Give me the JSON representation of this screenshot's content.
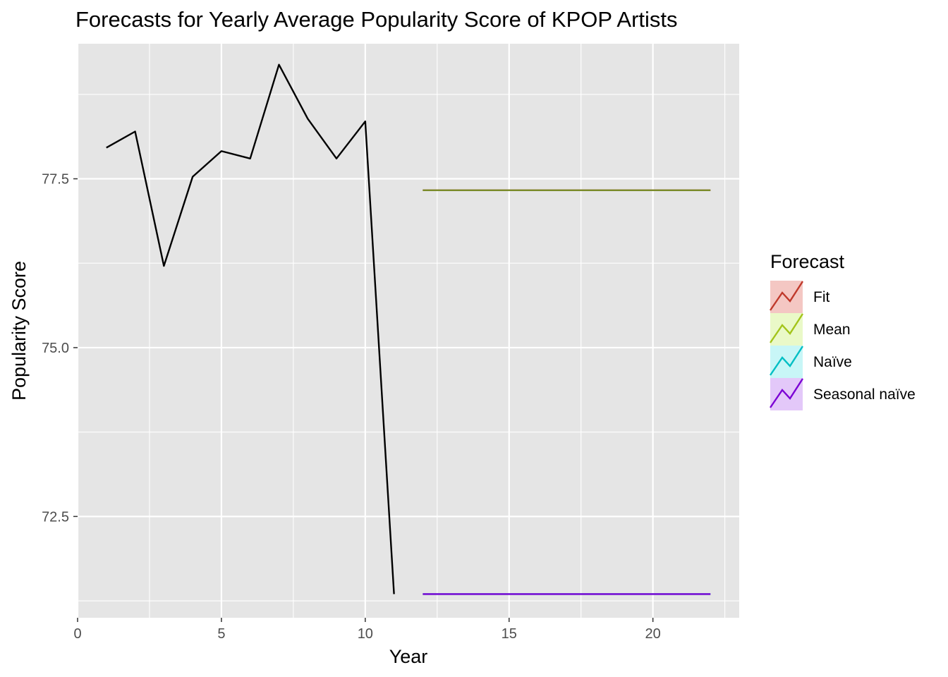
{
  "chart_data": {
    "type": "line",
    "title": "Forecasts for Yearly Average Popularity Score of KPOP Artists",
    "xlabel": "Year",
    "ylabel": "Popularity Score",
    "xlim": [
      0,
      23
    ],
    "ylim": [
      71.0,
      79.5
    ],
    "x_ticks": [
      0,
      5,
      10,
      15,
      20
    ],
    "x_tick_labels": [
      "0",
      "5",
      "10",
      "15",
      "20"
    ],
    "y_ticks": [
      72.5,
      75.0,
      77.5
    ],
    "y_tick_labels": [
      "72.5",
      "75.0",
      "77.5"
    ],
    "x_minor_gridlines": [
      2.5,
      7.5,
      12.5,
      17.5,
      22.5
    ],
    "y_minor_gridlines": [
      71.25,
      73.75,
      76.25,
      78.75
    ],
    "grid": true,
    "panel_background": "#e5e5e5",
    "grid_color": "#ffffff",
    "series": [
      {
        "key": "history",
        "color": "#000000",
        "x": [
          1,
          2,
          3,
          4,
          5,
          6,
          7,
          8,
          9,
          10,
          11
        ],
        "y": [
          77.96,
          78.2,
          76.21,
          77.53,
          77.91,
          77.8,
          79.19,
          78.39,
          77.8,
          78.35,
          71.35
        ]
      },
      {
        "key": "fit-forecast",
        "color": "#c0392b",
        "x": [
          12,
          22
        ],
        "y": [
          77.33,
          77.33
        ]
      },
      {
        "key": "mean-forecast",
        "color": "#7a8b2a",
        "x": [
          12,
          22
        ],
        "y": [
          77.33,
          77.33
        ]
      },
      {
        "key": "naive-forecast",
        "color": "#00bfc4",
        "x": [
          12,
          22
        ],
        "y": [
          71.35,
          71.35
        ]
      },
      {
        "key": "seasonal-naive-forecast",
        "color": "#7b00d4",
        "x": [
          12,
          22
        ],
        "y": [
          71.35,
          71.35
        ]
      }
    ],
    "legend": {
      "title": "Forecast",
      "placement": "right",
      "entries": [
        {
          "label": "Fit",
          "color": "#c0392b",
          "fill": "#f4c7c3"
        },
        {
          "label": "Mean",
          "color": "#a3c41a",
          "fill": "#eaf9c8"
        },
        {
          "label": "Naïve",
          "color": "#00bfc4",
          "fill": "#c8f6f7"
        },
        {
          "label": "Seasonal naïve",
          "color": "#7b00d4",
          "fill": "#e3c8f9"
        }
      ]
    }
  }
}
